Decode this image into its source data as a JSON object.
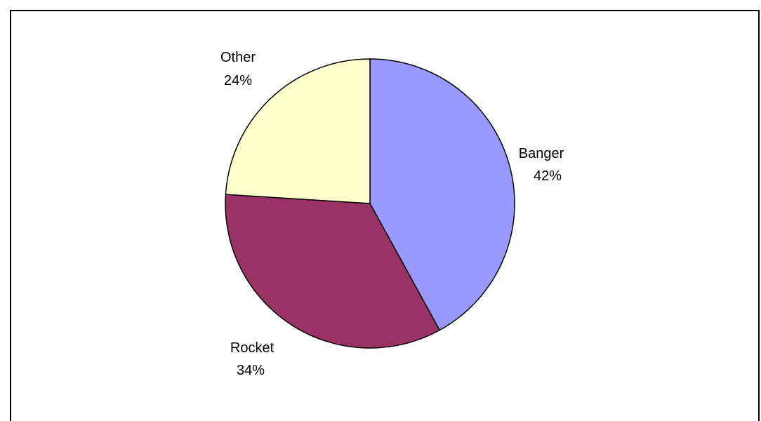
{
  "chart_data": {
    "type": "pie",
    "categories": [
      "Banger",
      "Rocket",
      "Other"
    ],
    "values": [
      42,
      34,
      24
    ],
    "value_labels": [
      "42%",
      "34%",
      "24%"
    ],
    "start_angle_deg": 0,
    "direction": "clockwise",
    "colors": [
      "#9999ff",
      "#993366",
      "#ffffcc"
    ],
    "legend": "none",
    "title": ""
  }
}
